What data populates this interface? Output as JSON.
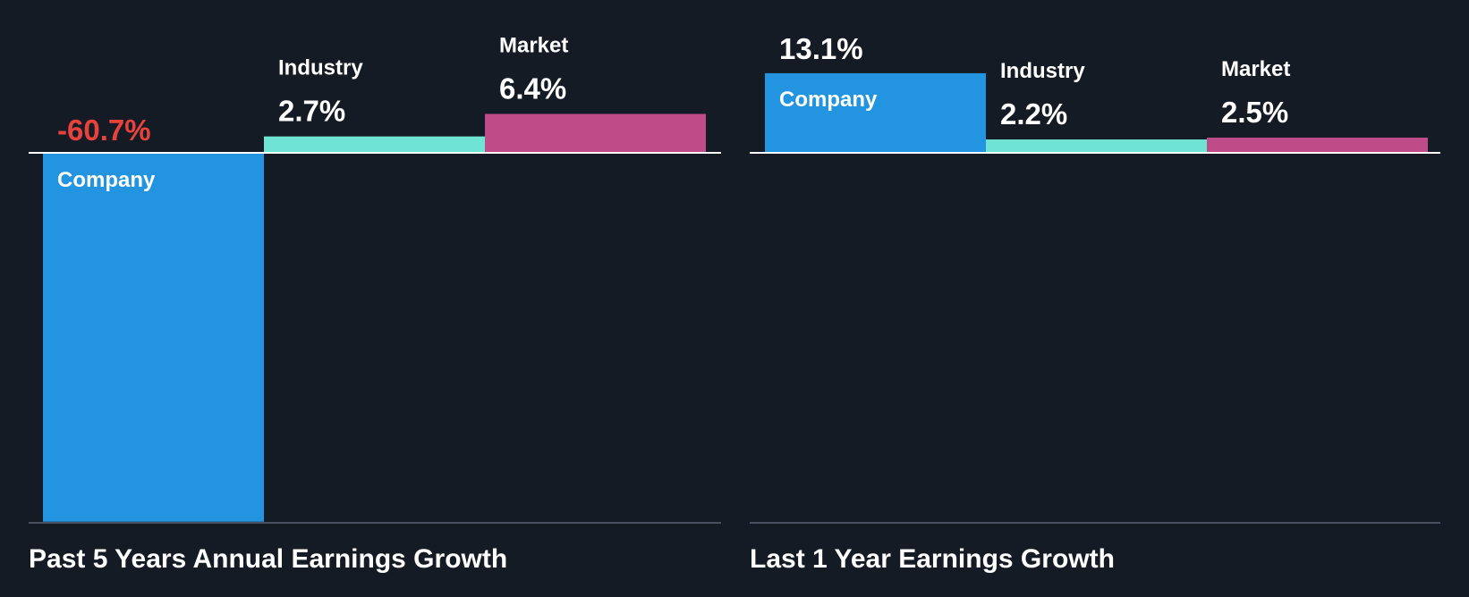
{
  "colors": {
    "background": "#151b24",
    "company": "#2394e0",
    "industry": "#6fe3d4",
    "market": "#bd4c88",
    "negative_text": "#e8423c",
    "text": "#ffffff",
    "zero_line": "#ffffff",
    "baseline": "#4a5060"
  },
  "chart_data": [
    {
      "type": "bar",
      "title": "Past 5 Years Annual Earnings Growth",
      "categories": [
        "Company",
        "Industry",
        "Market"
      ],
      "values": [
        -60.7,
        2.7,
        6.4
      ],
      "value_labels": [
        "-60.7%",
        "2.7%",
        "6.4%"
      ],
      "unit": "%",
      "ylim": [
        -60.7,
        13.1
      ],
      "grid": false,
      "legend": "none"
    },
    {
      "type": "bar",
      "title": "Last 1 Year Earnings Growth",
      "categories": [
        "Company",
        "Industry",
        "Market"
      ],
      "values": [
        13.1,
        2.2,
        2.5
      ],
      "value_labels": [
        "13.1%",
        "2.2%",
        "2.5%"
      ],
      "unit": "%",
      "ylim": [
        -60.7,
        13.1
      ],
      "grid": false,
      "legend": "none"
    }
  ]
}
